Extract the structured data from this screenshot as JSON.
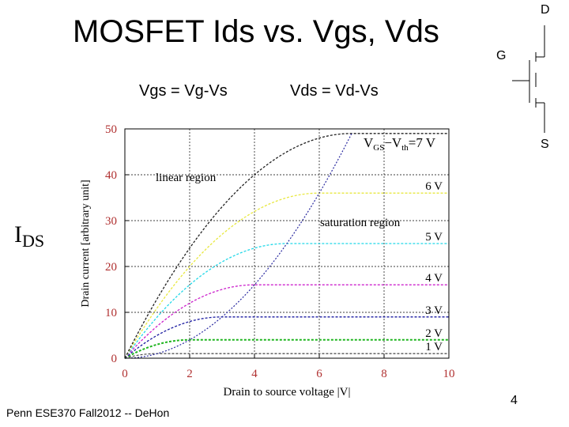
{
  "slide": {
    "title": "MOSFET Ids vs. Vgs, Vds",
    "eq_vgs": "Vgs = Vg-Vs",
    "eq_vds": "Vds = Vd-Vs",
    "ids_main": "I",
    "ids_sub": "DS",
    "footer": "Penn ESE370 Fall2012 -- DeHon",
    "page_number": "4"
  },
  "symbol": {
    "drain": "D",
    "gate": "G",
    "source": "S"
  },
  "chart_data": {
    "type": "line",
    "xlabel": "Drain to source voltage |V|",
    "ylabel": "Drain current [arbitrary unit]",
    "xlim": [
      0,
      10
    ],
    "ylim": [
      0,
      50
    ],
    "xticks": [
      0,
      2,
      4,
      6,
      8,
      10
    ],
    "yticks": [
      0,
      10,
      20,
      30,
      40,
      50
    ],
    "grid": true,
    "annotations": {
      "linear": "linear region",
      "saturation": "saturation region",
      "vgs_main": "V",
      "vgs_sub1": "GS",
      "vgs_minus": "−V",
      "vgs_sub2": "th",
      "vgs_value": "=7 V"
    },
    "series": [
      {
        "label": "1 V",
        "vov": 1,
        "color": "#555555"
      },
      {
        "label": "2 V",
        "vov": 2,
        "color": "#1fb51f"
      },
      {
        "label": "3 V",
        "vov": 3,
        "color": "#1a1aa0"
      },
      {
        "label": "4 V",
        "vov": 4,
        "color": "#cc22cc"
      },
      {
        "label": "5 V",
        "vov": 5,
        "color": "#22d8e8"
      },
      {
        "label": "6 V",
        "vov": 6,
        "color": "#e8e840"
      },
      {
        "label": "",
        "vov": 7,
        "color": "#222222"
      }
    ],
    "boundary": {
      "color": "#2a2aa0"
    }
  }
}
